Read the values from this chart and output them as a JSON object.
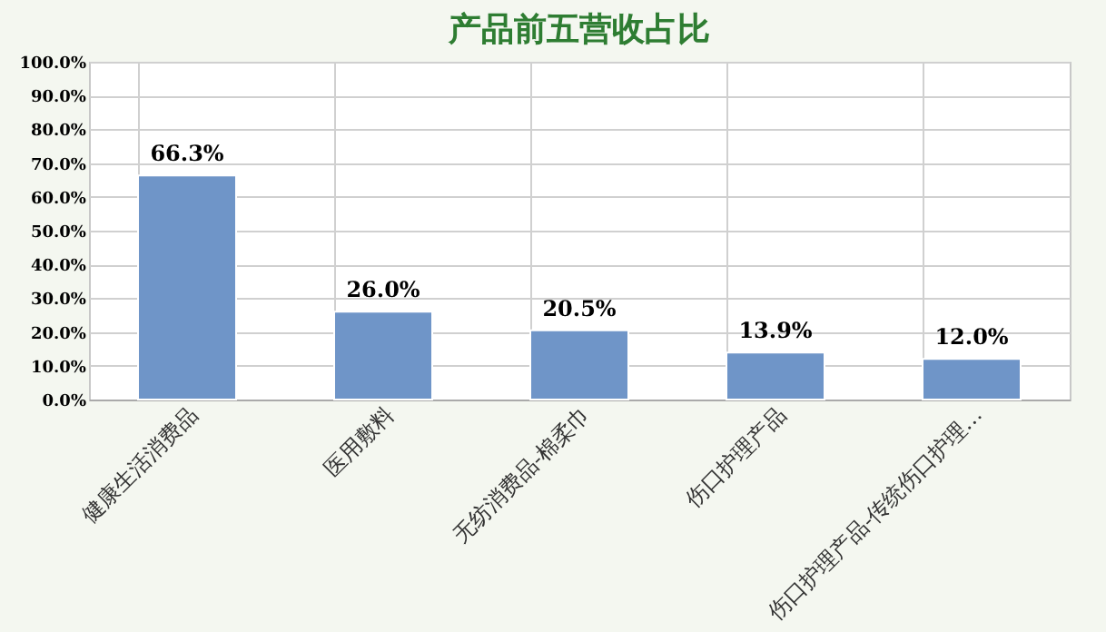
{
  "chart_data": {
    "type": "bar",
    "title": "产品前五营收占比",
    "categories": [
      "健康生活消费品",
      "医用敷料",
      "无纺消费品-棉柔巾",
      "伤口护理产品",
      "伤口护理产品-传统伤口护理…"
    ],
    "values": [
      66.3,
      26.0,
      20.5,
      13.9,
      12.0
    ],
    "value_labels": [
      "66.3%",
      "26.0%",
      "20.5%",
      "13.9%",
      "12.0%"
    ],
    "color": "#6f95c8",
    "ylim": [
      0,
      100
    ],
    "yticks": [
      {
        "value": 0,
        "label": "0.0%"
      },
      {
        "value": 10,
        "label": "10.0%"
      },
      {
        "value": 20,
        "label": "20.0%"
      },
      {
        "value": 30,
        "label": "30.0%"
      },
      {
        "value": 40,
        "label": "40.0%"
      },
      {
        "value": 50,
        "label": "50.0%"
      },
      {
        "value": 60,
        "label": "60.0%"
      },
      {
        "value": 70,
        "label": "70.0%"
      },
      {
        "value": 80,
        "label": "80.0%"
      },
      {
        "value": 90,
        "label": "90.0%"
      },
      {
        "value": 100,
        "label": "100.0%"
      }
    ],
    "grid": true
  }
}
